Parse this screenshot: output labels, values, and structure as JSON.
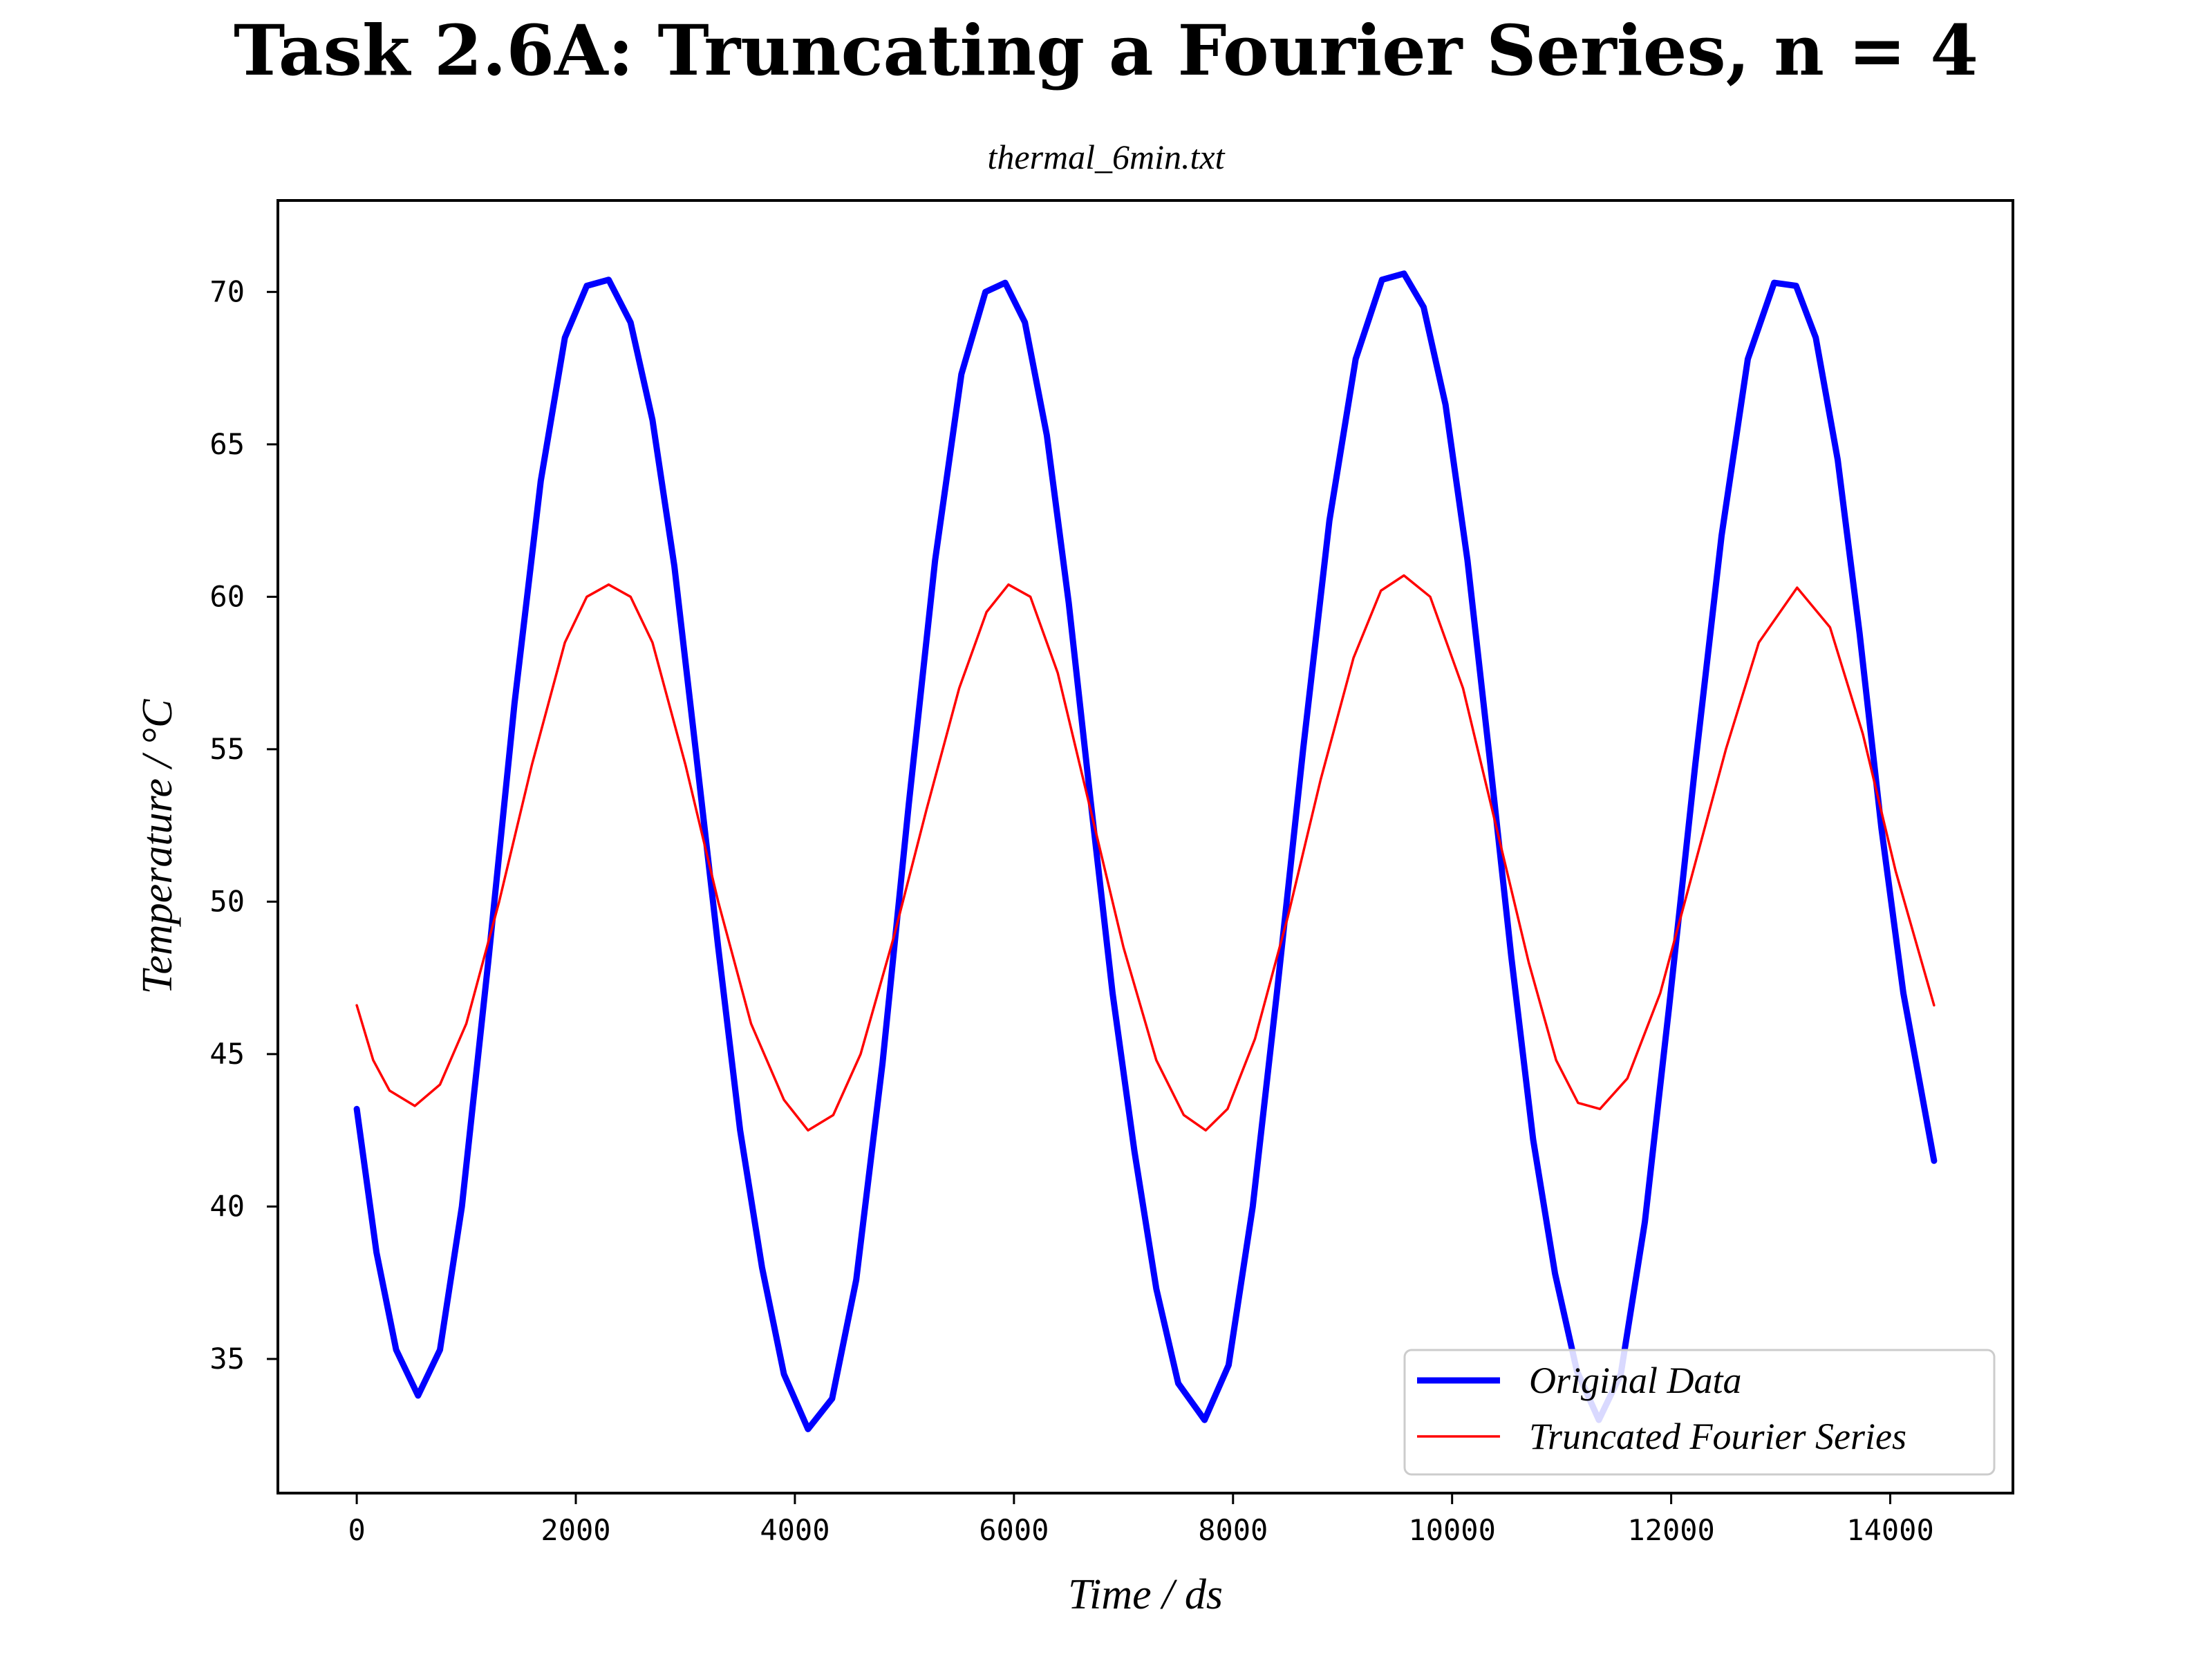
{
  "chart_data": {
    "type": "line",
    "title": "Task 2.6A: Truncating a Fourier Series, n = 4",
    "subtitle": "thermal_6min.txt",
    "xlabel": "Time / ds",
    "ylabel": "Temperature / °C",
    "xlim": [
      -720,
      15120
    ],
    "ylim": [
      30.6,
      73.0
    ],
    "xticks": [
      0,
      2000,
      4000,
      6000,
      8000,
      10000,
      12000,
      14000
    ],
    "xtick_labels": [
      "0",
      "2000",
      "4000",
      "6000",
      "8000",
      "10000",
      "12000",
      "14000"
    ],
    "yticks": [
      35,
      40,
      45,
      50,
      55,
      60,
      65,
      70
    ],
    "ytick_labels": [
      "35",
      "40",
      "45",
      "50",
      "55",
      "60",
      "65",
      "70"
    ],
    "grid": false,
    "legend_position": "lower-right",
    "series": [
      {
        "name": "Original Data",
        "color": "#0000ff",
        "x": [
          0,
          180,
          360,
          560,
          760,
          960,
          1200,
          1440,
          1680,
          1900,
          2100,
          2300,
          2500,
          2700,
          2900,
          3100,
          3300,
          3500,
          3700,
          3900,
          4120,
          4340,
          4560,
          4800,
          5040,
          5280,
          5520,
          5740,
          5920,
          6100,
          6300,
          6500,
          6700,
          6900,
          7100,
          7300,
          7500,
          7740,
          7960,
          8180,
          8400,
          8640,
          8880,
          9120,
          9360,
          9560,
          9740,
          9940,
          10140,
          10340,
          10540,
          10740,
          10940,
          11140,
          11340,
          11540,
          11760,
          11980,
          12220,
          12460,
          12700,
          12940,
          13140,
          13320,
          13520,
          13720,
          13920,
          14120,
          14400
        ],
        "y": [
          43.2,
          38.5,
          35.3,
          33.8,
          35.3,
          40.0,
          48.0,
          56.5,
          63.8,
          68.5,
          70.2,
          70.4,
          69.0,
          65.8,
          61.0,
          54.8,
          48.5,
          42.5,
          38.0,
          34.5,
          32.7,
          33.7,
          37.6,
          44.7,
          53.2,
          61.2,
          67.3,
          70.0,
          70.3,
          69.0,
          65.3,
          59.8,
          53.3,
          47.0,
          41.8,
          37.3,
          34.2,
          33.0,
          34.8,
          40.0,
          47.0,
          55.0,
          62.5,
          67.8,
          70.4,
          70.6,
          69.5,
          66.3,
          61.2,
          54.8,
          48.2,
          42.2,
          37.8,
          34.6,
          33.0,
          34.5,
          39.5,
          46.5,
          54.5,
          62.0,
          67.8,
          70.3,
          70.2,
          68.5,
          64.5,
          58.8,
          52.4,
          47.0,
          41.5
        ]
      },
      {
        "name": "Truncated Fourier Series",
        "color": "#ff0000",
        "x": [
          0,
          150,
          300,
          530,
          760,
          1000,
          1300,
          1600,
          1900,
          2100,
          2300,
          2500,
          2700,
          3000,
          3300,
          3600,
          3900,
          4120,
          4350,
          4600,
          4900,
          5200,
          5500,
          5750,
          5950,
          6150,
          6400,
          6700,
          7000,
          7300,
          7550,
          7750,
          7950,
          8200,
          8500,
          8800,
          9100,
          9350,
          9560,
          9800,
          10100,
          10400,
          10700,
          10950,
          11150,
          11350,
          11600,
          11900,
          12200,
          12500,
          12800,
          13150,
          13450,
          13750,
          14050,
          14400
        ],
        "y": [
          46.6,
          44.8,
          43.8,
          43.3,
          44.0,
          46.0,
          50.0,
          54.5,
          58.5,
          60.0,
          60.4,
          60.0,
          58.5,
          54.5,
          50.0,
          46.0,
          43.5,
          42.5,
          43.0,
          45.0,
          48.8,
          53.0,
          57.0,
          59.5,
          60.4,
          60.0,
          57.5,
          53.0,
          48.5,
          44.8,
          43.0,
          42.5,
          43.2,
          45.5,
          49.5,
          54.0,
          58.0,
          60.2,
          60.7,
          60.0,
          57.0,
          52.5,
          48.0,
          44.8,
          43.4,
          43.2,
          44.2,
          47.0,
          51.0,
          55.0,
          58.5,
          60.3,
          59.0,
          55.5,
          51.0,
          46.6
        ]
      }
    ]
  }
}
